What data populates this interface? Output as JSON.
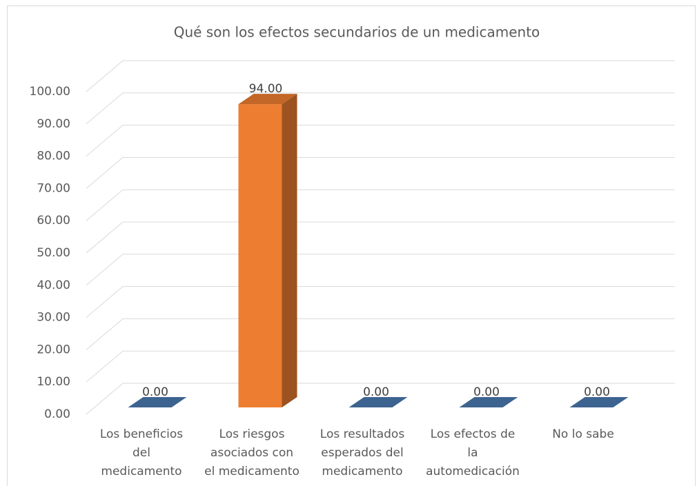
{
  "chart_data": {
    "type": "bar3d",
    "title": "Qué son los efectos secundarios de un medicamento",
    "categories": [
      "Los beneficios del medicamento",
      "Los riesgos asociados con el medicamento",
      "Los resultados esperados del medicamento",
      "Los efectos de la automedicación",
      "No lo sabe"
    ],
    "values": [
      0,
      94,
      0,
      0,
      0
    ],
    "value_labels": [
      "0.00",
      "94.00",
      "0.00",
      "0.00",
      "0.00"
    ],
    "colors": [
      "#4a7ab0",
      "#ed7d31",
      "#4a7ab0",
      "#4a7ab0",
      "#4a7ab0"
    ],
    "ylim": [
      0,
      100
    ],
    "yticks": [
      {
        "value": 0,
        "label": "0.00"
      },
      {
        "value": 10,
        "label": "10.00"
      },
      {
        "value": 20,
        "label": "20.00"
      },
      {
        "value": 30,
        "label": "30.00"
      },
      {
        "value": 40,
        "label": "40.00"
      },
      {
        "value": 50,
        "label": "50.00"
      },
      {
        "value": 60,
        "label": "60.00"
      },
      {
        "value": 70,
        "label": "70.00"
      },
      {
        "value": 80,
        "label": "80.00"
      },
      {
        "value": 90,
        "label": "90.00"
      },
      {
        "value": 100,
        "label": "100.00"
      }
    ],
    "grid": true
  }
}
